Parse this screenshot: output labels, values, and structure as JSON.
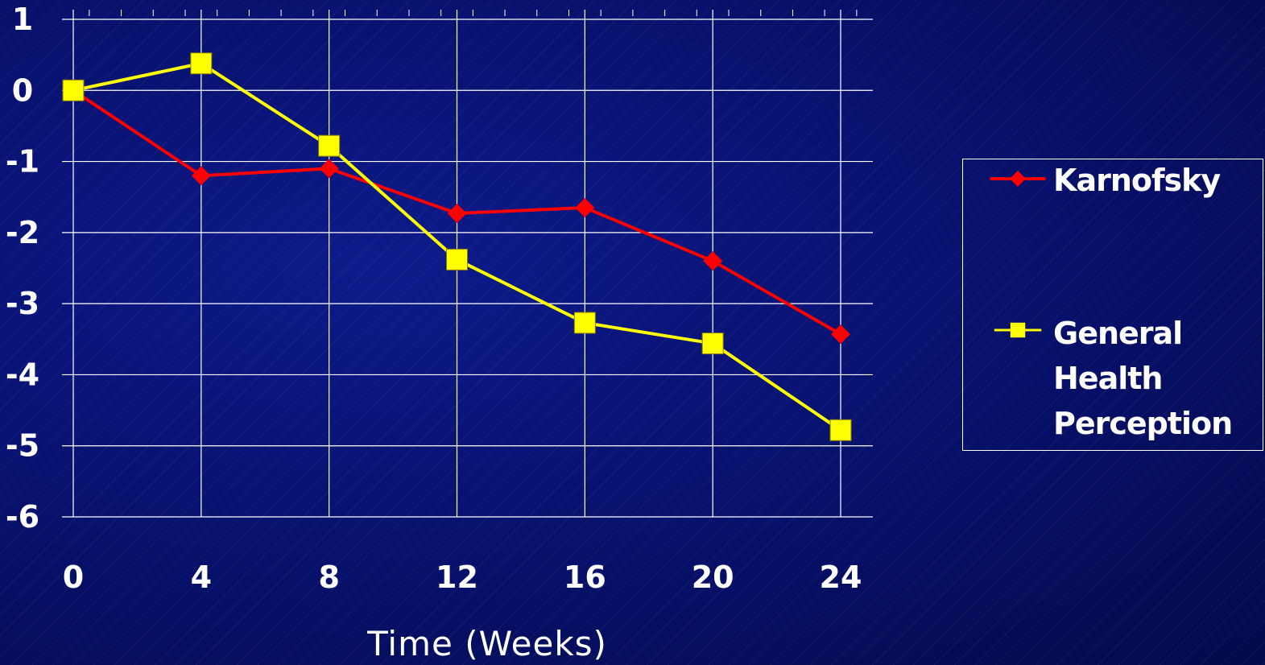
{
  "chart_data": {
    "type": "line",
    "title": "",
    "xlabel": "Time   (Weeks)",
    "ylabel": "",
    "x": [
      0,
      4,
      8,
      12,
      16,
      20,
      24
    ],
    "xticks": [
      "0",
      "4",
      "8",
      "12",
      "16",
      "20",
      "24"
    ],
    "yticks": [
      "1",
      "0",
      "-1",
      "-2",
      "-3",
      "-4",
      "-5",
      "-6"
    ],
    "xlim": [
      0,
      24
    ],
    "ylim": [
      -6,
      1
    ],
    "grid": true,
    "legend_position": "right",
    "series": [
      {
        "name": "Karnofsky",
        "values": [
          0,
          -1.2,
          -1.1,
          -1.73,
          -1.65,
          -2.4,
          -3.43
        ],
        "color": "#ff0000",
        "marker": "diamond"
      },
      {
        "name": "General Health Perception",
        "values": [
          0,
          0.38,
          -0.78,
          -2.38,
          -3.27,
          -3.56,
          -4.78
        ],
        "color": "#ffff00",
        "marker": "square"
      }
    ]
  },
  "colors": {
    "background": "#07106a",
    "grid": "#ffffff",
    "text": "#ffffff"
  }
}
